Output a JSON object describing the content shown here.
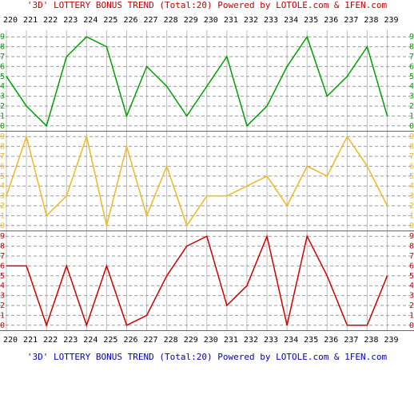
{
  "chart_data": {
    "type": "line",
    "title": "'3D' LOTTERY BONUS TREND (Total:20)  Powered by LOTOLE.com & 1FEN.com",
    "categories": [
      "220",
      "221",
      "222",
      "223",
      "224",
      "225",
      "226",
      "227",
      "228",
      "229",
      "230",
      "231",
      "232",
      "233",
      "234",
      "235",
      "236",
      "237",
      "238",
      "239"
    ],
    "series": [
      {
        "color": "#00a000",
        "values": [
          5,
          2,
          0,
          7,
          9,
          8,
          1,
          6,
          4,
          1,
          4,
          7,
          0,
          2,
          6,
          9,
          3,
          5,
          8,
          1
        ]
      },
      {
        "color": "#f0b820",
        "values": [
          3,
          9,
          1,
          3,
          9,
          0,
          8,
          1,
          6,
          0,
          3,
          3,
          4,
          5,
          2,
          6,
          5,
          9,
          6,
          2
        ]
      },
      {
        "color": "#d00000",
        "values": [
          6,
          6,
          0,
          6,
          0,
          6,
          0,
          1,
          5,
          8,
          9,
          2,
          4,
          9,
          0,
          9,
          5,
          0,
          0,
          5
        ]
      }
    ],
    "ylim": [
      -0.5,
      9.5
    ],
    "yticks": [
      0,
      1,
      2,
      3,
      4,
      5,
      6,
      7,
      8,
      9
    ],
    "grid": true
  }
}
